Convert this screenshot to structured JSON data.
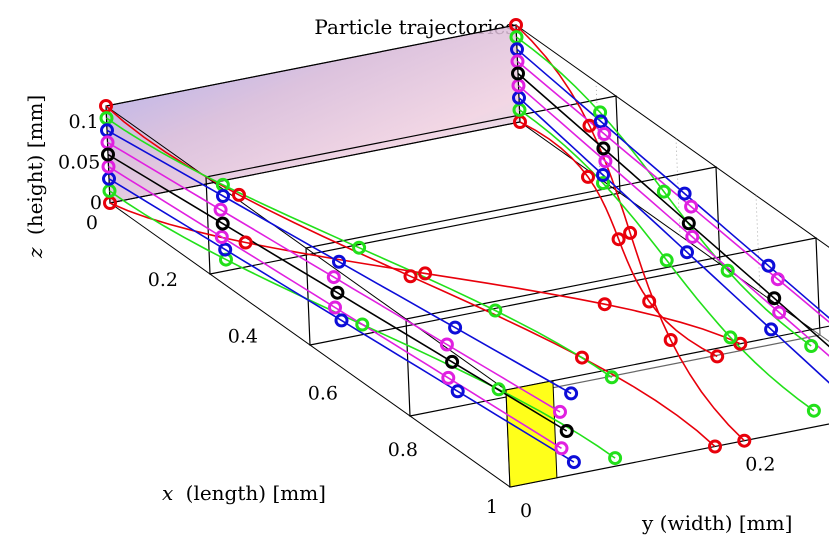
{
  "chart_data": {
    "type": "scatter",
    "title": "Particle trajectories",
    "xlabel": "(length) [mm]",
    "xlabel_var": "x",
    "ylabel": "y (width) [mm]",
    "zlabel": "(height) [mm]",
    "zlabel_var": "z",
    "x_ticks": [
      "0",
      "0.2",
      "0.4",
      "0.6",
      "0.8",
      "1"
    ],
    "y_ticks": [
      "0",
      "0.2"
    ],
    "z_ticks": [
      "0",
      "0.05",
      "0.1"
    ],
    "xlim": [
      0,
      1
    ],
    "ylim": [
      0,
      0.35
    ],
    "zlim": [
      0,
      0.12
    ],
    "grid": true,
    "colors": {
      "red": "#e8000b",
      "green": "#22e01a",
      "blue": "#0d0dd8",
      "magenta": "#e020e0",
      "black": "#000000",
      "outlet": "#ffff1a"
    },
    "planes": [
      {
        "x": 0.0,
        "marker_color_order": [
          "red",
          "green",
          "blue",
          "magenta",
          "black",
          "magenta",
          "blue",
          "green",
          "red"
        ]
      },
      {
        "x": 0.25,
        "marker_color_order": [
          "green",
          "blue",
          "magenta",
          "black",
          "magenta",
          "blue"
        ]
      },
      {
        "x": 0.5,
        "marker_color_order": [
          "blue",
          "magenta",
          "black",
          "magenta",
          "blue",
          "green"
        ]
      },
      {
        "x": 0.75,
        "marker_color_order": [
          "green",
          "blue",
          "magenta",
          "black",
          "magenta",
          "blue",
          "green"
        ]
      },
      {
        "x": 1.0,
        "marker_color_order": [
          "blue",
          "magenta",
          "black",
          "magenta",
          "blue",
          "green",
          "red"
        ]
      }
    ],
    "series": [
      {
        "color": "red",
        "y0": 0.35,
        "z0": 0.12,
        "y_end": 0.2,
        "z_end": 0.0
      },
      {
        "color": "red",
        "y0": 0.0,
        "z0": 0.12,
        "y_end": 0.175,
        "z_end": 0.0
      },
      {
        "color": "red",
        "y0": 0.0,
        "z0": 0.0,
        "y_end": 0.2,
        "z_end": 0.12
      },
      {
        "color": "red",
        "y0": 0.35,
        "z0": 0.0,
        "y_end": 0.18,
        "z_end": 0.11
      },
      {
        "color": "green",
        "y0": 0.0,
        "z0": 0.015,
        "y_end": 0.09,
        "z_end": 0.01
      },
      {
        "color": "green",
        "y0": 0.35,
        "z0": 0.105,
        "y_end": 0.26,
        "z_end": 0.1
      },
      {
        "color": "green",
        "y0": 0.0,
        "z0": 0.105,
        "y_end": 0.09,
        "z_end": 0.11
      },
      {
        "color": "green",
        "y0": 0.35,
        "z0": 0.015,
        "y_end": 0.26,
        "z_end": 0.02
      },
      {
        "color": "blue",
        "y0": 0.0,
        "z0": 0.03,
        "y_end": 0.055,
        "z_end": 0.015
      },
      {
        "color": "blue",
        "y0": 0.0,
        "z0": 0.09,
        "y_end": 0.055,
        "z_end": 0.1
      },
      {
        "color": "blue",
        "y0": 0.35,
        "z0": 0.03,
        "y_end": 0.295,
        "z_end": 0.015
      },
      {
        "color": "blue",
        "y0": 0.35,
        "z0": 0.09,
        "y_end": 0.295,
        "z_end": 0.1
      },
      {
        "color": "magenta",
        "y0": 0.0,
        "z0": 0.045,
        "y_end": 0.045,
        "z_end": 0.035
      },
      {
        "color": "magenta",
        "y0": 0.0,
        "z0": 0.075,
        "y_end": 0.045,
        "z_end": 0.08
      },
      {
        "color": "magenta",
        "y0": 0.35,
        "z0": 0.045,
        "y_end": 0.305,
        "z_end": 0.035
      },
      {
        "color": "magenta",
        "y0": 0.35,
        "z0": 0.075,
        "y_end": 0.305,
        "z_end": 0.08
      },
      {
        "color": "black",
        "y0": 0.0,
        "z0": 0.06,
        "y_end": 0.05,
        "z_end": 0.055
      },
      {
        "color": "black",
        "y0": 0.35,
        "z0": 0.06,
        "y_end": 0.3,
        "z_end": 0.055
      }
    ]
  }
}
